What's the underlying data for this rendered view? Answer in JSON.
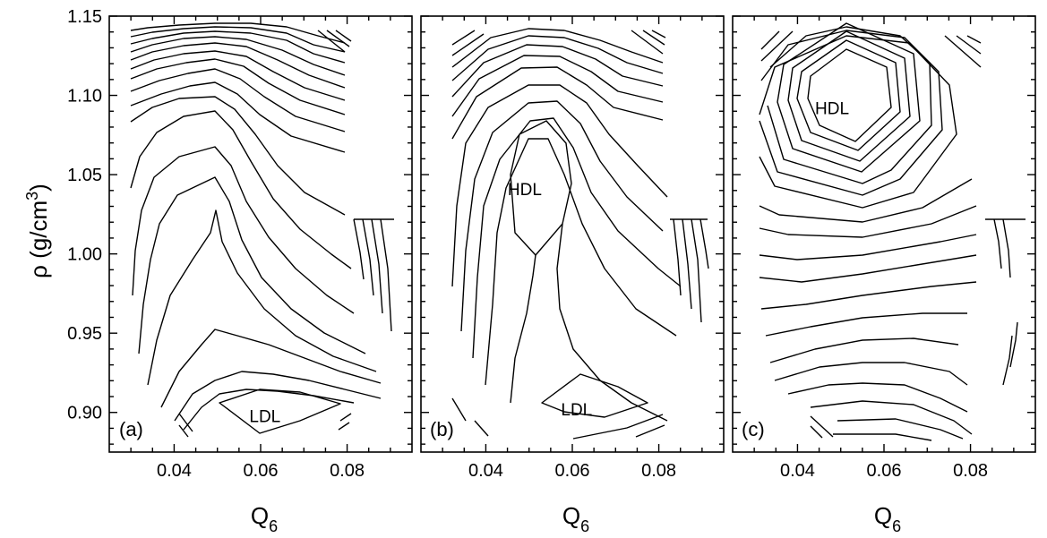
{
  "chart_data": [
    {
      "type": "contour",
      "panel_label": "(a)",
      "xlabel": "Q",
      "xlabel_sub": "6",
      "ylabel": "ρ (g/cm",
      "ylabel_sup": "3",
      "ylabel_close": ")",
      "xlim": [
        0.025,
        0.095
      ],
      "ylim": [
        0.875,
        1.15
      ],
      "x_ticks": [
        "0.04",
        "0.06",
        "0.08"
      ],
      "y_ticks": [
        "0.90",
        "0.95",
        "1.00",
        "1.05",
        "1.10",
        "1.15"
      ],
      "regions": [
        {
          "label": "LDL",
          "x": 0.061,
          "y": 0.898
        }
      ]
    },
    {
      "type": "contour",
      "panel_label": "(b)",
      "xlabel": "Q",
      "xlabel_sub": "6",
      "xlim": [
        0.025,
        0.095
      ],
      "ylim": [
        0.875,
        1.15
      ],
      "x_ticks": [
        "0.04",
        "0.06",
        "0.08"
      ],
      "regions": [
        {
          "label": "HDL",
          "x": 0.049,
          "y": 1.041
        },
        {
          "label": "LDL",
          "x": 0.061,
          "y": 0.902
        }
      ]
    },
    {
      "type": "contour",
      "panel_label": "(c)",
      "xlabel": "Q",
      "xlabel_sub": "6",
      "xlim": [
        0.025,
        0.095
      ],
      "ylim": [
        0.875,
        1.15
      ],
      "x_ticks": [
        "0.04",
        "0.06",
        "0.08"
      ],
      "regions": [
        {
          "label": "HDL",
          "x": 0.048,
          "y": 1.092
        }
      ]
    }
  ]
}
